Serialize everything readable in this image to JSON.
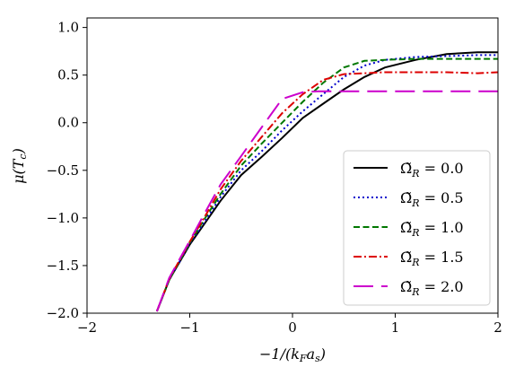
{
  "chart_data": {
    "type": "line",
    "title": "",
    "xlabel": "−1/(k_F a_s)",
    "ylabel": "μ(T_c)",
    "xlim": [
      -2,
      2
    ],
    "ylim": [
      -2.0,
      1.1
    ],
    "x_ticks": [
      -2,
      -1,
      0,
      1,
      2
    ],
    "x_tick_labels": [
      "−2",
      "−1",
      "0",
      "1",
      "2"
    ],
    "y_ticks": [
      -2.0,
      -1.5,
      -1.0,
      -0.5,
      0.0,
      0.5,
      1.0
    ],
    "y_tick_labels": [
      "−2.0",
      "−1.5",
      "−1.0",
      "−0.5",
      "0.0",
      "0.5",
      "1.0"
    ],
    "grid": false,
    "legend_position": "lower-right",
    "series": [
      {
        "name": "Ω̃_R = 0.0",
        "color": "#000000",
        "style": "solid",
        "x": [
          -1.32,
          -1.2,
          -1.0,
          -0.85,
          -0.7,
          -0.5,
          -0.3,
          -0.1,
          0.1,
          0.3,
          0.5,
          0.7,
          0.9,
          1.2,
          1.5,
          1.8,
          2.0
        ],
        "y": [
          -1.98,
          -1.65,
          -1.28,
          -1.05,
          -0.82,
          -0.55,
          -0.36,
          -0.16,
          0.05,
          0.2,
          0.35,
          0.48,
          0.58,
          0.66,
          0.72,
          0.74,
          0.74
        ]
      },
      {
        "name": "Ω̃_R = 0.5",
        "color": "#0000cc",
        "style": "dotted",
        "x": [
          -1.32,
          -1.2,
          -1.0,
          -0.85,
          -0.7,
          -0.5,
          -0.3,
          -0.1,
          0.1,
          0.3,
          0.5,
          0.7,
          0.9,
          1.2,
          1.5,
          1.8,
          2.0
        ],
        "y": [
          -1.98,
          -1.65,
          -1.27,
          -1.03,
          -0.78,
          -0.5,
          -0.3,
          -0.08,
          0.12,
          0.3,
          0.48,
          0.6,
          0.66,
          0.69,
          0.7,
          0.71,
          0.71
        ]
      },
      {
        "name": "Ω̃_R = 1.0",
        "color": "#007700",
        "style": "dashed",
        "x": [
          -1.32,
          -1.2,
          -1.0,
          -0.85,
          -0.7,
          -0.5,
          -0.3,
          -0.1,
          0.1,
          0.3,
          0.5,
          0.7,
          0.9,
          1.2,
          1.5,
          1.8,
          2.0
        ],
        "y": [
          -1.98,
          -1.65,
          -1.26,
          -1.0,
          -0.75,
          -0.45,
          -0.22,
          0.0,
          0.22,
          0.42,
          0.58,
          0.65,
          0.66,
          0.67,
          0.67,
          0.67,
          0.67
        ]
      },
      {
        "name": "Ω̃_R = 1.5",
        "color": "#dd0000",
        "style": "dashdot",
        "x": [
          -1.32,
          -1.2,
          -1.0,
          -0.85,
          -0.7,
          -0.5,
          -0.3,
          -0.1,
          0.1,
          0.3,
          0.5,
          0.7,
          0.9,
          1.2,
          1.5,
          1.8,
          2.0
        ],
        "y": [
          -1.98,
          -1.64,
          -1.25,
          -0.98,
          -0.7,
          -0.4,
          -0.15,
          0.1,
          0.3,
          0.45,
          0.51,
          0.52,
          0.53,
          0.53,
          0.53,
          0.52,
          0.53
        ]
      },
      {
        "name": "Ω̃_R = 2.0",
        "color": "#cc00cc",
        "style": "longdash",
        "x": [
          -1.32,
          -1.2,
          -1.0,
          -0.85,
          -0.7,
          -0.5,
          -0.3,
          -0.1,
          0.1,
          0.25,
          0.4,
          0.7,
          1.0,
          1.5,
          2.0
        ],
        "y": [
          -1.98,
          -1.63,
          -1.24,
          -0.94,
          -0.65,
          -0.35,
          -0.05,
          0.25,
          0.32,
          0.33,
          0.33,
          0.33,
          0.33,
          0.33,
          0.33
        ]
      }
    ]
  }
}
